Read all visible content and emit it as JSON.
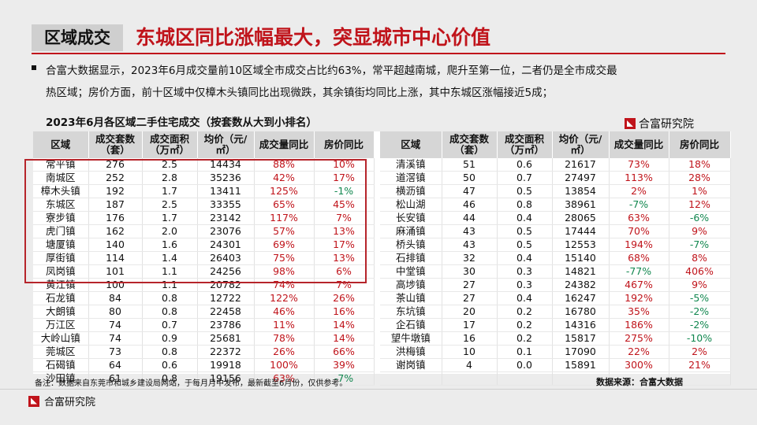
{
  "header": {
    "tag": "区域成交",
    "title": "东城区同比涨幅最大，突显城市中心价值"
  },
  "summary": {
    "line1": "合富大数据显示，2023年6月成交量前10区域全市成交占比约63%，常平超越南城，爬升至第一位，二者仍是全市成交最",
    "line2": "热区域；房价方面，前十区域中仅樟木头镇同比出现微跌，其余镇街均同比上涨，其中东城区涨幅接近5成；"
  },
  "table_title": "2023年6月各区域二手住宅成交（按套数从大到小排名）",
  "brand": "合富研究院",
  "columns": [
    "区域",
    "成交套数（套）",
    "成交面积（万㎡）",
    "均价（元/㎡）",
    "成交量同比",
    "房价同比"
  ],
  "left_rows": [
    [
      "常平镇",
      "276",
      "2.5",
      "14434",
      "88%",
      "10%"
    ],
    [
      "南城区",
      "252",
      "2.8",
      "35236",
      "42%",
      "17%"
    ],
    [
      "樟木头镇",
      "192",
      "1.7",
      "13411",
      "125%",
      "-1%"
    ],
    [
      "东城区",
      "187",
      "2.5",
      "33355",
      "65%",
      "45%"
    ],
    [
      "寮步镇",
      "176",
      "1.7",
      "23142",
      "117%",
      "7%"
    ],
    [
      "虎门镇",
      "162",
      "2.0",
      "23076",
      "57%",
      "13%"
    ],
    [
      "塘厦镇",
      "140",
      "1.6",
      "24301",
      "69%",
      "17%"
    ],
    [
      "厚街镇",
      "114",
      "1.4",
      "26403",
      "75%",
      "13%"
    ],
    [
      "凤岗镇",
      "101",
      "1.1",
      "24256",
      "98%",
      "6%"
    ],
    [
      "黄江镇",
      "100",
      "1.1",
      "20782",
      "74%",
      "7%"
    ],
    [
      "石龙镇",
      "84",
      "0.8",
      "12722",
      "122%",
      "26%"
    ],
    [
      "大朗镇",
      "80",
      "0.8",
      "22458",
      "46%",
      "16%"
    ],
    [
      "万江区",
      "74",
      "0.7",
      "23786",
      "11%",
      "14%"
    ],
    [
      "大岭山镇",
      "74",
      "0.9",
      "25681",
      "78%",
      "14%"
    ],
    [
      "莞城区",
      "73",
      "0.8",
      "22372",
      "26%",
      "66%"
    ],
    [
      "石碣镇",
      "64",
      "0.6",
      "19918",
      "100%",
      "39%"
    ],
    [
      "沙田镇",
      "61",
      "0.8",
      "19156",
      "63%",
      "-7%"
    ]
  ],
  "right_rows": [
    [
      "清溪镇",
      "51",
      "0.6",
      "21617",
      "73%",
      "18%"
    ],
    [
      "道滘镇",
      "50",
      "0.7",
      "27497",
      "113%",
      "28%"
    ],
    [
      "横沥镇",
      "47",
      "0.5",
      "13854",
      "2%",
      "1%"
    ],
    [
      "松山湖",
      "46",
      "0.8",
      "38961",
      "-7%",
      "12%"
    ],
    [
      "长安镇",
      "44",
      "0.4",
      "28065",
      "63%",
      "-6%"
    ],
    [
      "麻涌镇",
      "43",
      "0.5",
      "17444",
      "70%",
      "9%"
    ],
    [
      "桥头镇",
      "43",
      "0.5",
      "12553",
      "194%",
      "-7%"
    ],
    [
      "石排镇",
      "32",
      "0.4",
      "15140",
      "68%",
      "8%"
    ],
    [
      "中堂镇",
      "30",
      "0.3",
      "14821",
      "-77%",
      "406%"
    ],
    [
      "高埗镇",
      "27",
      "0.3",
      "24382",
      "467%",
      "9%"
    ],
    [
      "茶山镇",
      "27",
      "0.4",
      "16247",
      "192%",
      "-5%"
    ],
    [
      "东坑镇",
      "20",
      "0.2",
      "16780",
      "35%",
      "-2%"
    ],
    [
      "企石镇",
      "17",
      "0.2",
      "14316",
      "186%",
      "-2%"
    ],
    [
      "望牛墩镇",
      "16",
      "0.2",
      "15817",
      "275%",
      "-10%"
    ],
    [
      "洪梅镇",
      "10",
      "0.1",
      "17090",
      "22%",
      "2%"
    ],
    [
      "谢岗镇",
      "4",
      "0.0",
      "15891",
      "300%",
      "21%"
    ],
    [
      "",
      "",
      "",
      "",
      "",
      ""
    ]
  ],
  "footer": {
    "note": "备注：数据来自东莞市和城乡建设局网站，于每月月中发布，最新截至6月份，仅供参考。",
    "source": "数据来源：合富大数据"
  },
  "colors": {
    "accent": "#c0141b",
    "positive": "#c0141b",
    "negative": "#11874f"
  }
}
